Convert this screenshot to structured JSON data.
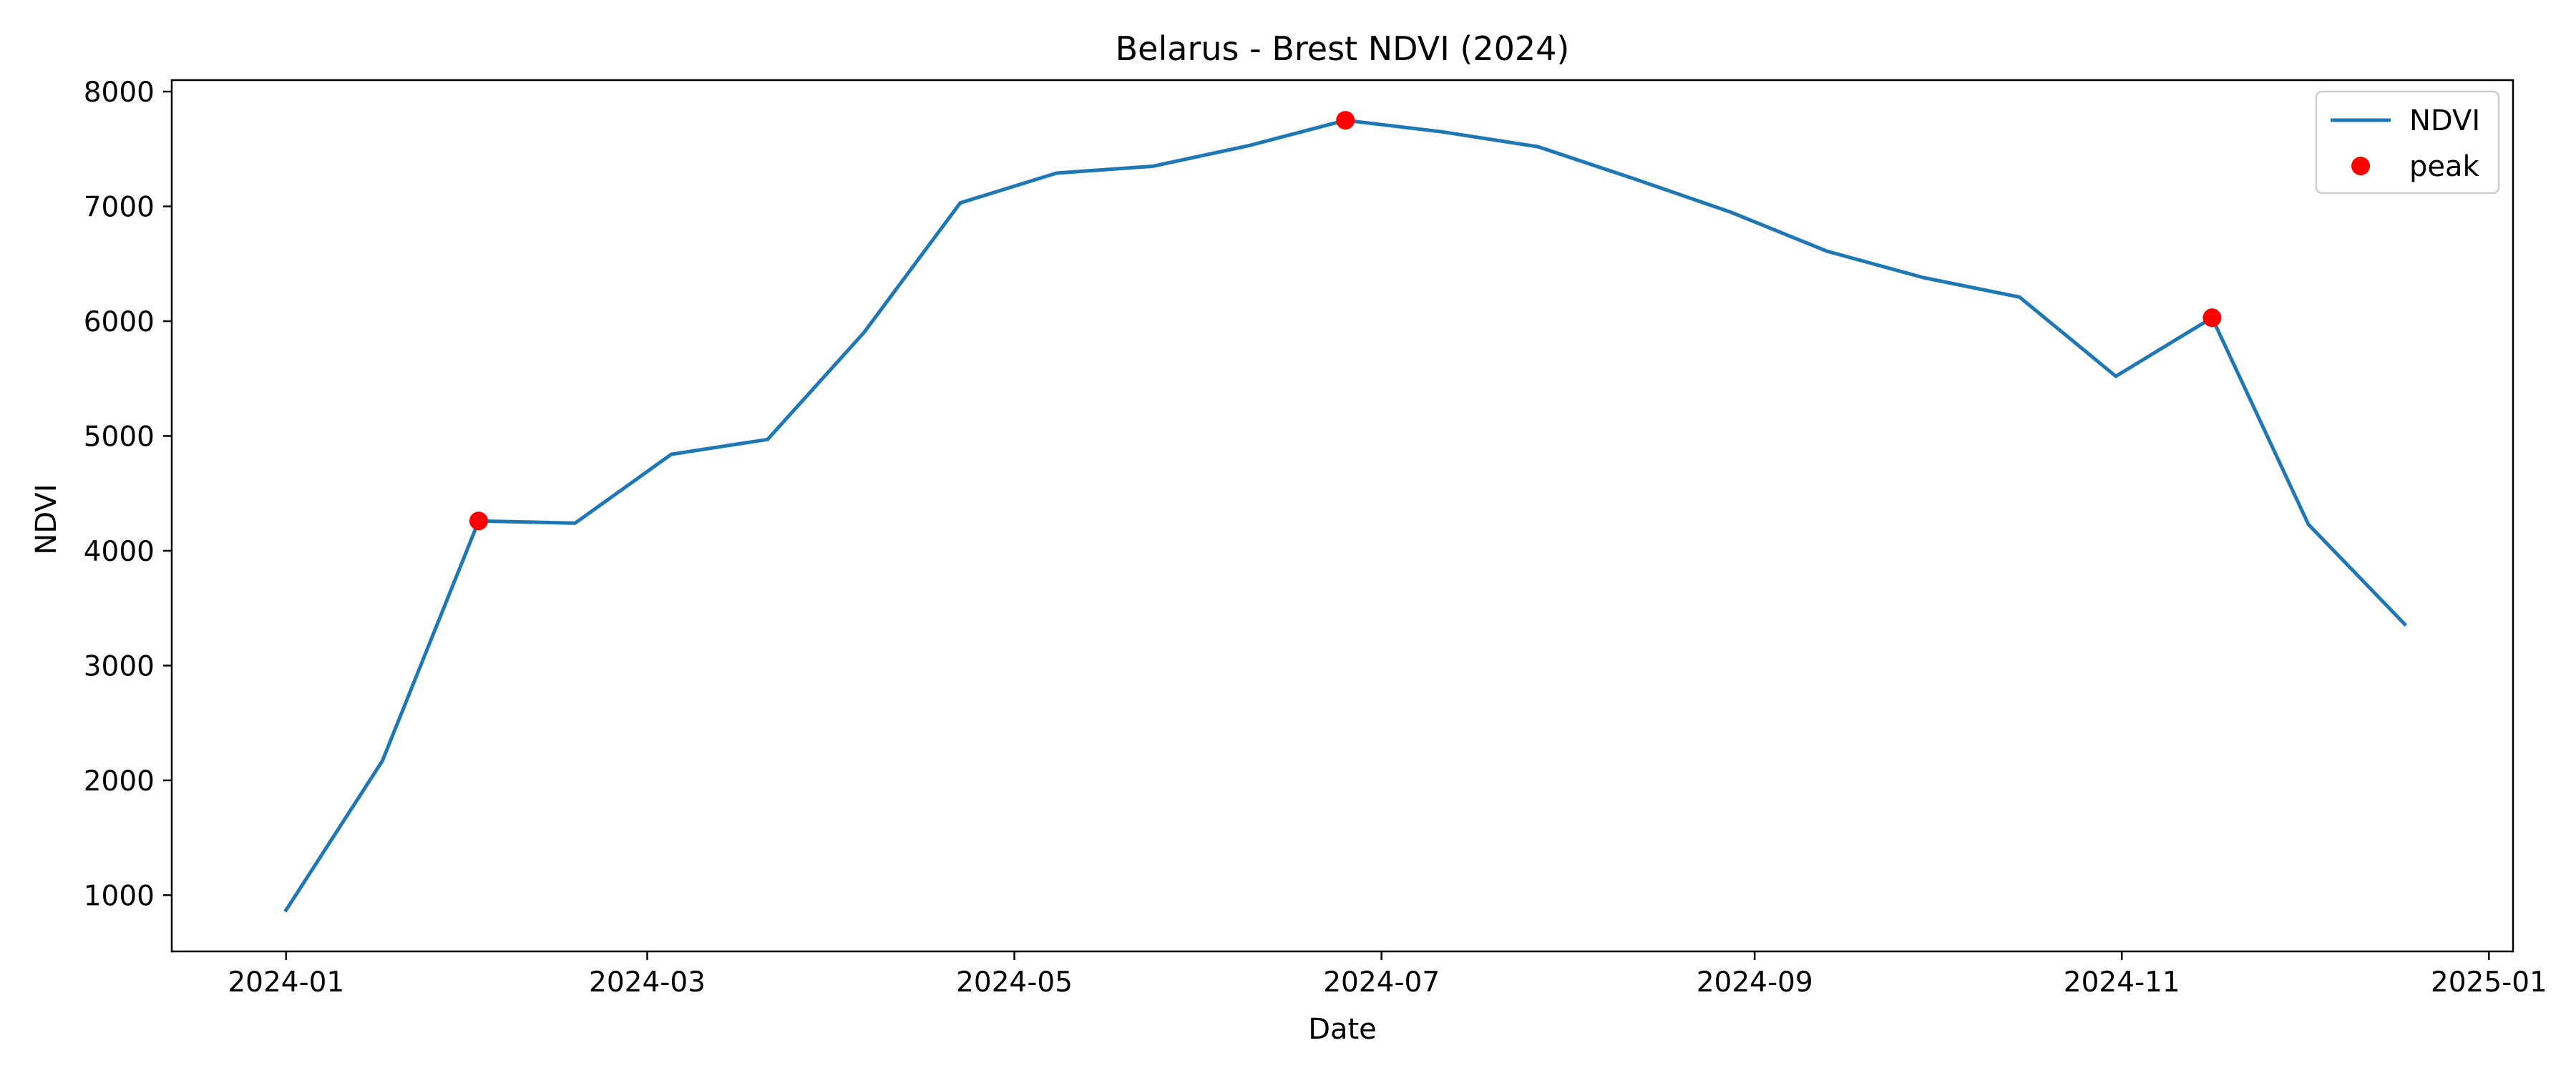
{
  "chart_data": {
    "type": "line",
    "title": "Belarus - Brest NDVI (2024)",
    "xlabel": "Date",
    "ylabel": "NDVI",
    "x_ticks": [
      "2024-01-01",
      "2024-03-01",
      "2024-05-01",
      "2024-07-01",
      "2024-09-01",
      "2024-11-01",
      "2025-01-01"
    ],
    "x_tick_labels": [
      "2024-01",
      "2024-03",
      "2024-05",
      "2024-07",
      "2024-09",
      "2024-11",
      "2025-01"
    ],
    "y_ticks": [
      1000,
      2000,
      3000,
      4000,
      5000,
      6000,
      7000,
      8000
    ],
    "y_tick_labels": [
      "1000",
      "2000",
      "3000",
      "4000",
      "5000",
      "6000",
      "7000",
      "8000"
    ],
    "xlim": [
      "2023-12-13",
      "2025-01-05"
    ],
    "ylim": [
      510,
      8100
    ],
    "grid": false,
    "legend": {
      "position": "top-right",
      "entries": [
        "NDVI",
        "peak"
      ]
    },
    "colors": {
      "line": "#1f77b4",
      "peak": "#ff0000"
    },
    "series": [
      {
        "name": "NDVI",
        "points": [
          {
            "x": "2024-01-01",
            "y": 870
          },
          {
            "x": "2024-01-17",
            "y": 2170
          },
          {
            "x": "2024-02-02",
            "y": 4260
          },
          {
            "x": "2024-02-18",
            "y": 4240
          },
          {
            "x": "2024-03-05",
            "y": 4840
          },
          {
            "x": "2024-03-21",
            "y": 4970
          },
          {
            "x": "2024-04-06",
            "y": 5900
          },
          {
            "x": "2024-04-22",
            "y": 7030
          },
          {
            "x": "2024-05-08",
            "y": 7290
          },
          {
            "x": "2024-05-24",
            "y": 7350
          },
          {
            "x": "2024-06-09",
            "y": 7530
          },
          {
            "x": "2024-06-25",
            "y": 7750
          },
          {
            "x": "2024-07-11",
            "y": 7650
          },
          {
            "x": "2024-07-27",
            "y": 7520
          },
          {
            "x": "2024-08-12",
            "y": 7240
          },
          {
            "x": "2024-08-28",
            "y": 6950
          },
          {
            "x": "2024-09-13",
            "y": 6610
          },
          {
            "x": "2024-09-29",
            "y": 6380
          },
          {
            "x": "2024-10-15",
            "y": 6210
          },
          {
            "x": "2024-10-31",
            "y": 5520
          },
          {
            "x": "2024-11-16",
            "y": 6030
          },
          {
            "x": "2024-12-02",
            "y": 4230
          },
          {
            "x": "2024-12-18",
            "y": 3360
          }
        ]
      },
      {
        "name": "peak",
        "points": [
          {
            "x": "2024-02-02",
            "y": 4260
          },
          {
            "x": "2024-06-25",
            "y": 7750
          },
          {
            "x": "2024-11-16",
            "y": 6030
          }
        ]
      }
    ]
  }
}
